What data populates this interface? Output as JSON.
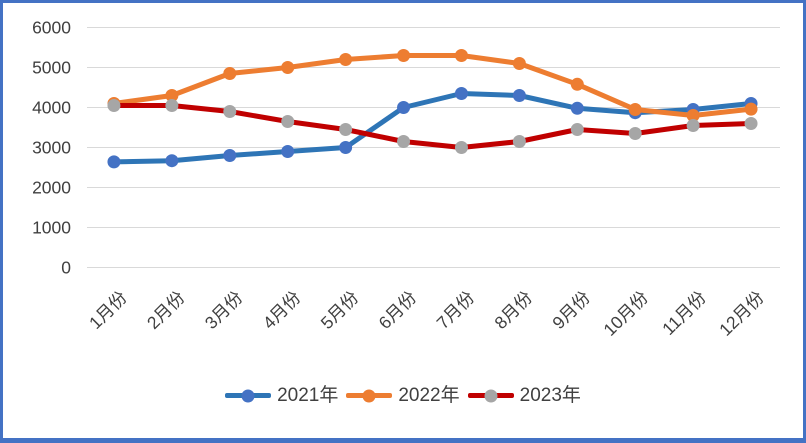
{
  "frame": {
    "background_color": "#FFFFFF",
    "border_color": "#4472C4"
  },
  "axes": {
    "tick_label_color": "#404040",
    "gridline_color": "#D9D9D9",
    "x_label_rotation_deg": -45
  },
  "chart_data": {
    "type": "line",
    "title": "",
    "xlabel": "",
    "ylabel": "",
    "categories": [
      "1月份",
      "2月份",
      "3月份",
      "4月份",
      "5月份",
      "6月份",
      "7月份",
      "8月份",
      "9月份",
      "10月份",
      "11月份",
      "12月份"
    ],
    "series": [
      {
        "name": "2021年",
        "line_color": "#2E75B6",
        "marker_color": "#4472C4",
        "values": [
          2640,
          2670,
          2800,
          2900,
          3000,
          4000,
          4350,
          4300,
          3980,
          3870,
          3950,
          4100
        ]
      },
      {
        "name": "2022年",
        "line_color": "#ED7D31",
        "marker_color": "#ED7D31",
        "values": [
          4100,
          4300,
          4850,
          5000,
          5200,
          5300,
          5300,
          5100,
          4580,
          3950,
          3800,
          3960
        ]
      },
      {
        "name": "2023年",
        "line_color": "#C00000",
        "marker_color": "#A6A6A6",
        "values": [
          4050,
          4050,
          3900,
          3650,
          3450,
          3150,
          3000,
          3150,
          3450,
          3350,
          3550,
          3600
        ]
      }
    ],
    "ylim": [
      0,
      6000
    ],
    "y_ticks": [
      0,
      1000,
      2000,
      3000,
      4000,
      5000,
      6000
    ],
    "grid": true,
    "legend_position": "bottom"
  }
}
